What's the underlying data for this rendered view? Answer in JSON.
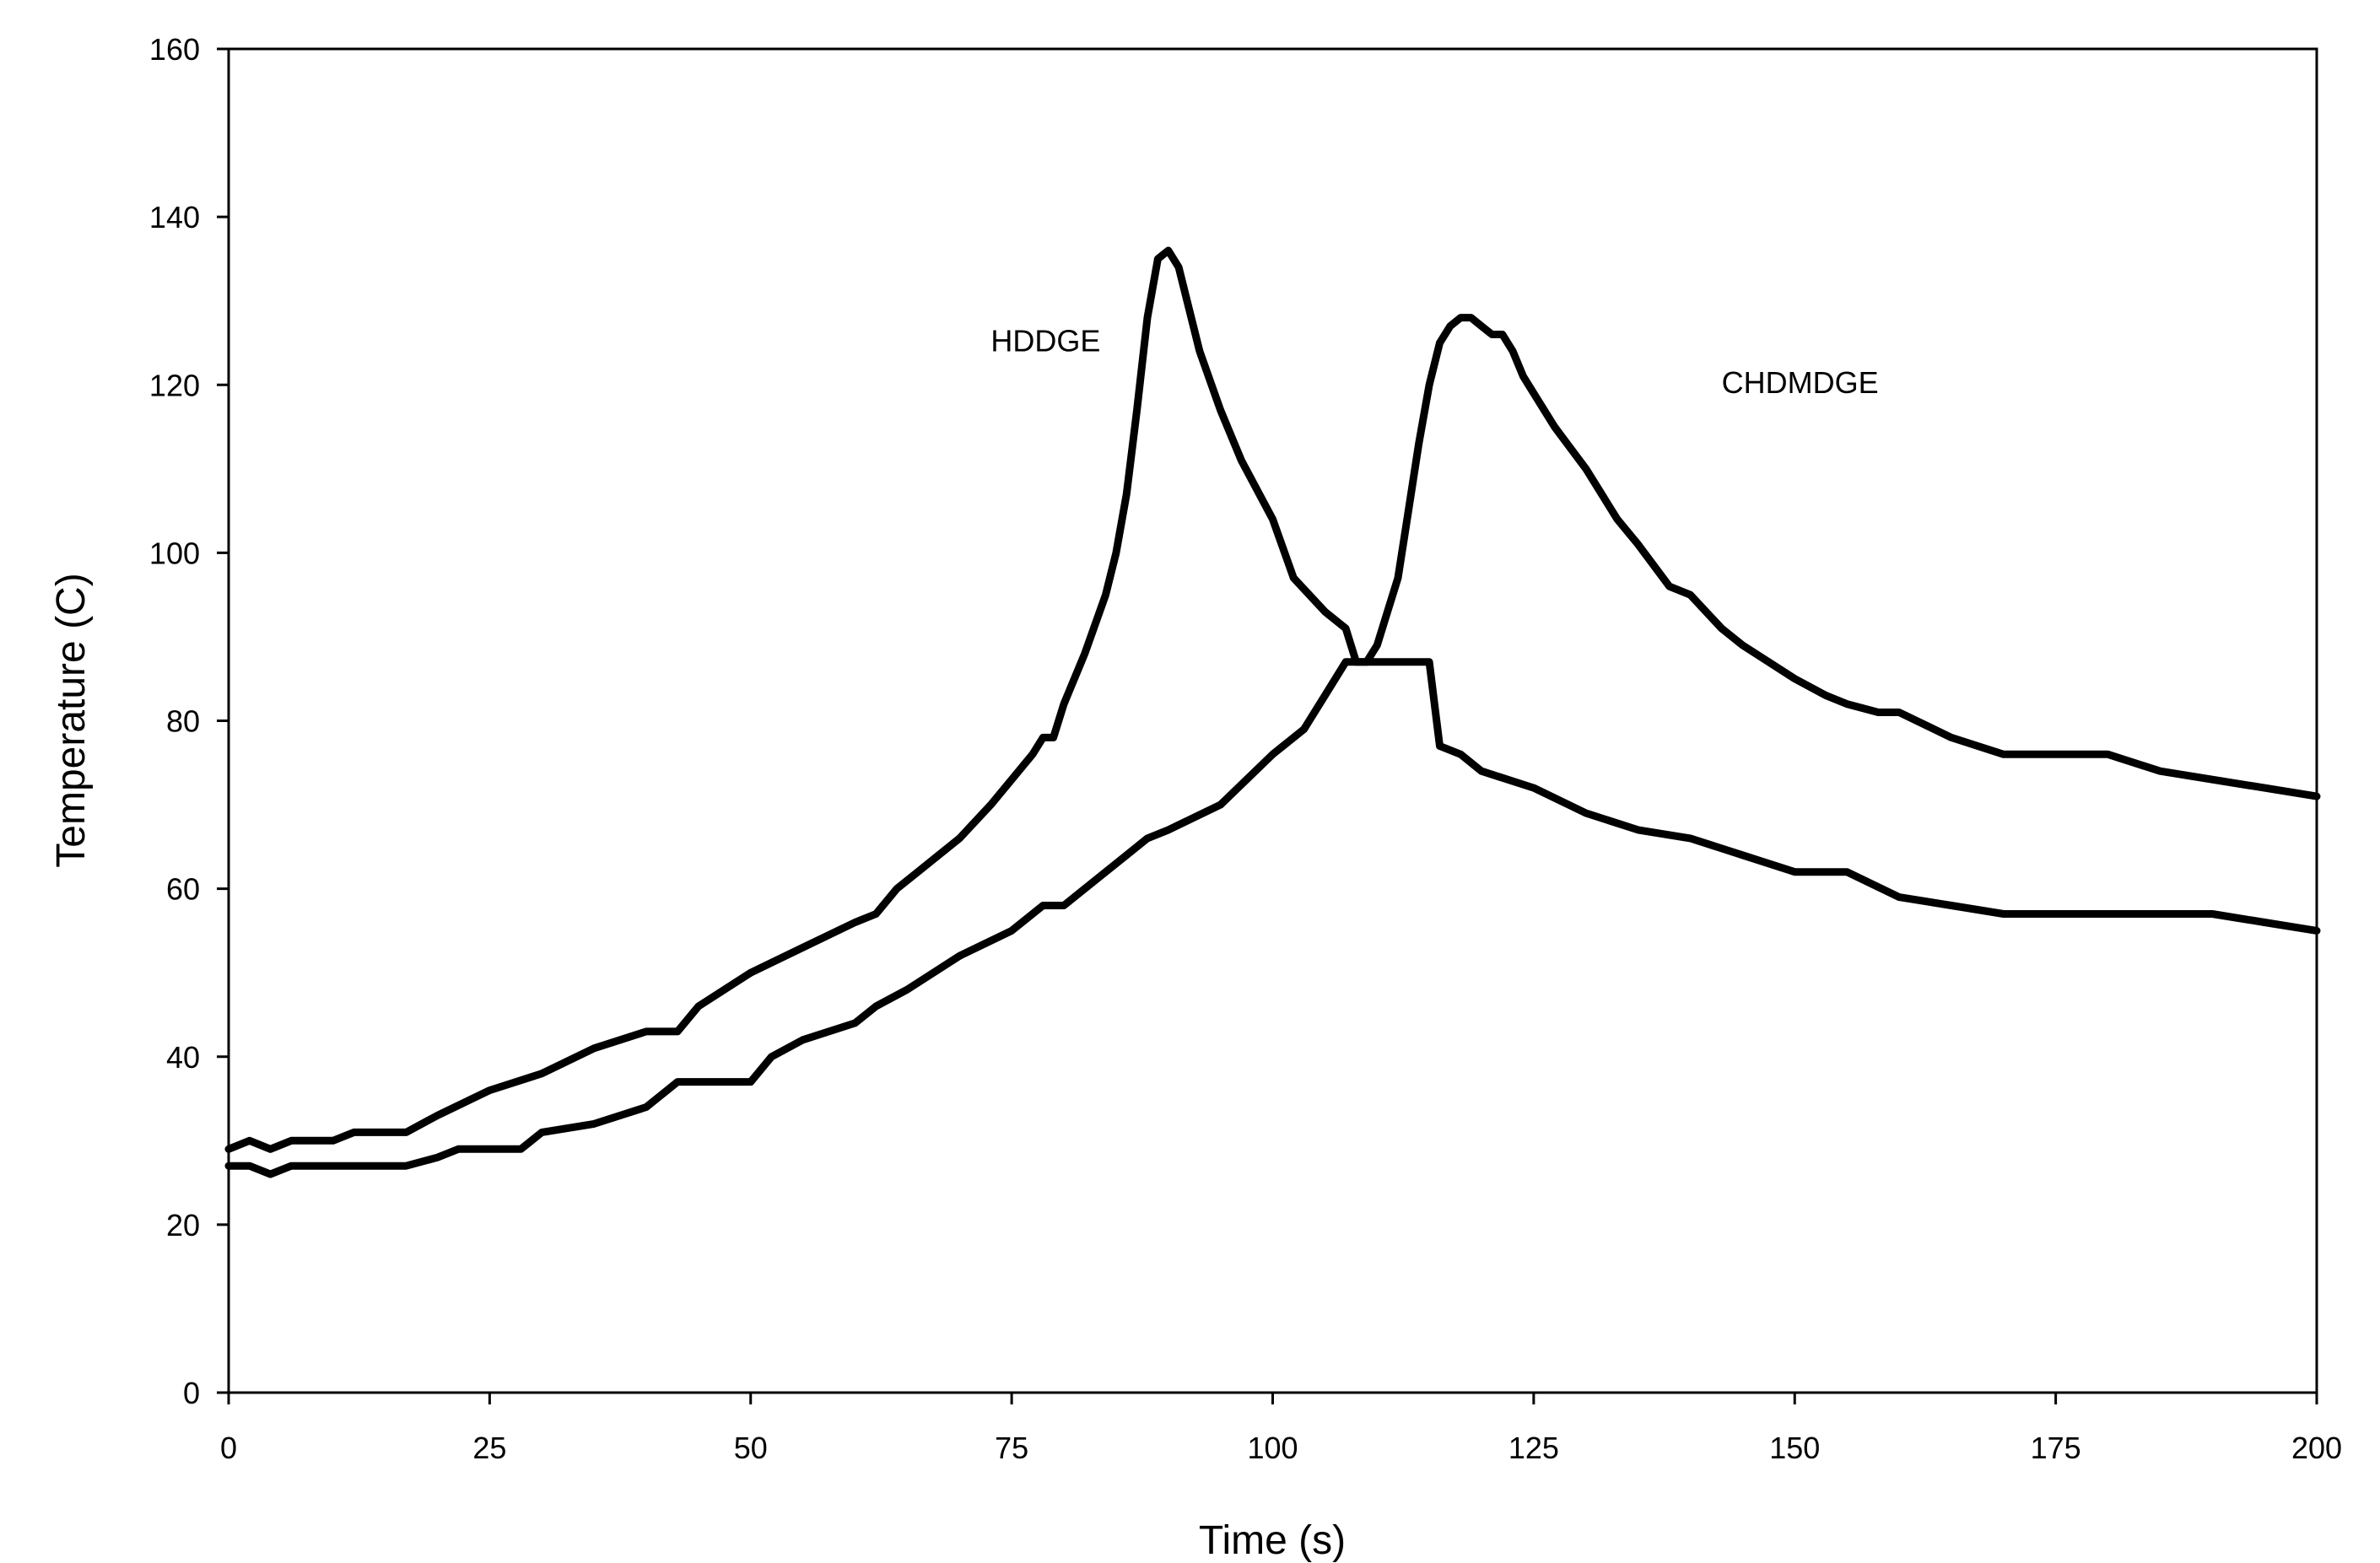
{
  "chart_data": {
    "type": "line",
    "title": "",
    "xlabel": "Time (s)",
    "ylabel": "Temperature (C)",
    "xlim": [
      0,
      200
    ],
    "ylim": [
      0,
      160
    ],
    "x_ticks": [
      0,
      25,
      50,
      75,
      100,
      125,
      150,
      175,
      200
    ],
    "y_ticks": [
      0,
      20,
      40,
      60,
      80,
      100,
      120,
      140,
      160
    ],
    "x_tick_labels": [
      "0",
      "25",
      "50",
      "75",
      "100",
      "125",
      "150",
      "175",
      "200"
    ],
    "y_tick_labels": [
      "0",
      "20",
      "40",
      "60",
      "80",
      "100",
      "120",
      "140",
      "160"
    ],
    "grid": false,
    "legend": "none",
    "line_color": "#000000",
    "annotations": [
      {
        "text": "HDDGE",
        "x": 73,
        "y": 124
      },
      {
        "text": "CHDMDGE",
        "x": 143,
        "y": 119
      }
    ],
    "series": [
      {
        "name": "HDDGE",
        "x": [
          0,
          2,
          4,
          6,
          10,
          12,
          17,
          20,
          25,
          30,
          35,
          40,
          43,
          45,
          50,
          55,
          60,
          62,
          64,
          66,
          70,
          73,
          75,
          77,
          78,
          79,
          80,
          82,
          84,
          85,
          86,
          87,
          88,
          89,
          90,
          91,
          93,
          95,
          97,
          100,
          102,
          105,
          107,
          108,
          110,
          113,
          115,
          116,
          118,
          120,
          125,
          130,
          135,
          140,
          145,
          150,
          155,
          160,
          165,
          170,
          175,
          180,
          185,
          190,
          195,
          200
        ],
        "y": [
          29,
          30,
          29,
          30,
          30,
          31,
          31,
          33,
          36,
          38,
          41,
          43,
          43,
          46,
          50,
          53,
          56,
          57,
          60,
          62,
          66,
          70,
          73,
          76,
          78,
          78,
          82,
          88,
          95,
          100,
          107,
          117,
          128,
          135,
          136,
          134,
          124,
          117,
          111,
          104,
          97,
          93,
          91,
          87,
          87,
          87,
          87,
          77,
          76,
          74,
          72,
          69,
          67,
          66,
          64,
          62,
          62,
          59,
          58,
          57,
          57,
          57,
          57,
          57,
          56,
          55
        ]
      },
      {
        "name": "CHDMDGE",
        "x": [
          0,
          2,
          4,
          6,
          10,
          15,
          17,
          20,
          22,
          25,
          28,
          30,
          35,
          40,
          43,
          47,
          50,
          52,
          55,
          60,
          62,
          65,
          70,
          75,
          78,
          80,
          85,
          88,
          90,
          95,
          100,
          103,
          105,
          107,
          109,
          110,
          111,
          112,
          113,
          114,
          115,
          116,
          117,
          118,
          119,
          120,
          121,
          122,
          123,
          124,
          125,
          127,
          130,
          133,
          135,
          138,
          140,
          143,
          145,
          150,
          153,
          155,
          158,
          160,
          165,
          170,
          175,
          180,
          185,
          190,
          195,
          200
        ],
        "y": [
          27,
          27,
          26,
          27,
          27,
          27,
          27,
          28,
          29,
          29,
          29,
          31,
          32,
          34,
          37,
          37,
          37,
          40,
          42,
          44,
          46,
          48,
          52,
          55,
          58,
          58,
          63,
          66,
          67,
          70,
          76,
          79,
          83,
          87,
          87,
          89,
          93,
          97,
          105,
          113,
          120,
          125,
          127,
          128,
          128,
          127,
          126,
          126,
          124,
          121,
          119,
          115,
          110,
          104,
          101,
          96,
          95,
          91,
          89,
          85,
          83,
          82,
          81,
          81,
          78,
          76,
          76,
          76,
          74,
          73,
          72,
          71
        ]
      }
    ]
  }
}
